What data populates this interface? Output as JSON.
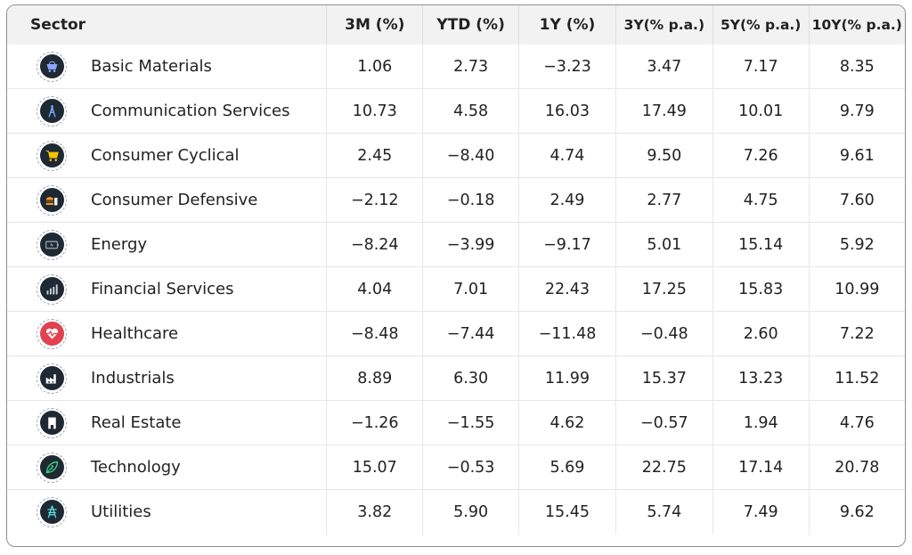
{
  "table": {
    "headers": [
      "Sector",
      "3M (%)",
      "YTD (%)",
      "1Y (%)",
      "3Y(% p.a.)",
      "5Y(% p.a.)",
      "10Y(% p.a.)"
    ],
    "rows": [
      {
        "sector": "Basic Materials",
        "icon": "mining-cart-icon",
        "values": [
          "1.06",
          "2.73",
          "-3.23",
          "3.47",
          "7.17",
          "8.35"
        ]
      },
      {
        "sector": "Communication Services",
        "icon": "antenna-tower-icon",
        "values": [
          "10.73",
          "4.58",
          "16.03",
          "17.49",
          "10.01",
          "9.79"
        ]
      },
      {
        "sector": "Consumer Cyclical",
        "icon": "shopping-cart-icon",
        "values": [
          "2.45",
          "-8.40",
          "4.74",
          "9.50",
          "7.26",
          "9.61"
        ]
      },
      {
        "sector": "Consumer Defensive",
        "icon": "burger-drink-icon",
        "values": [
          "-2.12",
          "-0.18",
          "2.49",
          "2.77",
          "4.75",
          "7.60"
        ]
      },
      {
        "sector": "Energy",
        "icon": "battery-bolt-icon",
        "values": [
          "-8.24",
          "-3.99",
          "-9.17",
          "5.01",
          "15.14",
          "5.92"
        ]
      },
      {
        "sector": "Financial Services",
        "icon": "bar-growth-icon",
        "values": [
          "4.04",
          "7.01",
          "22.43",
          "17.25",
          "15.83",
          "10.99"
        ]
      },
      {
        "sector": "Healthcare",
        "icon": "heart-pulse-icon",
        "values": [
          "-8.48",
          "-7.44",
          "-11.48",
          "-0.48",
          "2.60",
          "7.22"
        ]
      },
      {
        "sector": "Industrials",
        "icon": "factory-icon",
        "values": [
          "8.89",
          "6.30",
          "11.99",
          "15.37",
          "13.23",
          "11.52"
        ]
      },
      {
        "sector": "Real Estate",
        "icon": "building-icon",
        "values": [
          "-1.26",
          "-1.55",
          "4.62",
          "-0.57",
          "1.94",
          "4.76"
        ]
      },
      {
        "sector": "Technology",
        "icon": "circuit-leaf-icon",
        "values": [
          "15.07",
          "-0.53",
          "5.69",
          "22.75",
          "17.14",
          "20.78"
        ]
      },
      {
        "sector": "Utilities",
        "icon": "power-pylon-icon",
        "values": [
          "3.82",
          "5.90",
          "15.45",
          "5.74",
          "7.49",
          "9.62"
        ]
      }
    ]
  },
  "colors": {
    "header_bg": "#f2f2f2",
    "icon_bg": "#1f2933",
    "icon_accents": [
      "#8ea4ff",
      "#7cb6ff",
      "#f5c400",
      "#f59a23",
      "#9ea7b3",
      "#cfd6e0",
      "#ff6b6b",
      "#ffffff",
      "#ffffff",
      "#3ddc84",
      "#5ce1e6"
    ],
    "healthcare_icon_bg": "#e0424f",
    "border": "#8e8e8e"
  }
}
